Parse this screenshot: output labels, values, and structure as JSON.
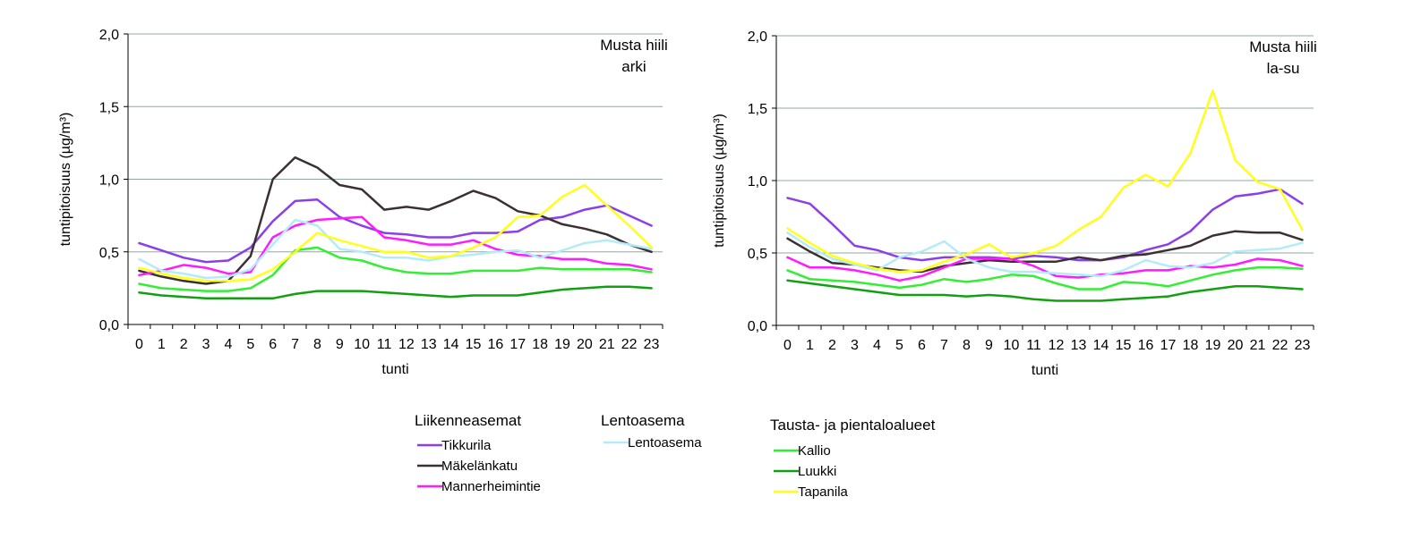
{
  "colors": {
    "Tikkurila": "#8b3fe8",
    "Mäkelänkatu": "#3b3032",
    "Mannerheimintie": "#ff1aff",
    "Lentoasema": "#b3ecf8",
    "Kallio": "#33ee33",
    "Luukki": "#12a012",
    "Tapanila": "#ffff1a",
    "grid": "#8fa8a0",
    "axis": "#000000"
  },
  "chart_data": [
    {
      "type": "line",
      "annotation": [
        "Musta hiili",
        "arki"
      ],
      "xlabel": "tunti",
      "ylabel": "tuntipitoisuus (µg/m³)",
      "ylim": [
        0,
        2
      ],
      "yticks": [
        "0,0",
        "0,5",
        "1,0",
        "1,5",
        "2,0"
      ],
      "x": [
        "0",
        "1",
        "2",
        "3",
        "4",
        "5",
        "6",
        "7",
        "8",
        "9",
        "10",
        "11",
        "12",
        "13",
        "14",
        "15",
        "16",
        "17",
        "18",
        "19",
        "20",
        "21",
        "22",
        "23"
      ],
      "grid": "horizontal",
      "series": [
        {
          "name": "Tikkurila",
          "values": [
            0.56,
            0.51,
            0.46,
            0.43,
            0.44,
            0.53,
            0.71,
            0.85,
            0.86,
            0.74,
            0.68,
            0.63,
            0.62,
            0.6,
            0.6,
            0.63,
            0.63,
            0.64,
            0.72,
            0.74,
            0.79,
            0.82,
            0.75,
            0.68
          ]
        },
        {
          "name": "Mäkelänkatu",
          "values": [
            0.37,
            0.33,
            0.3,
            0.28,
            0.3,
            0.47,
            1.0,
            1.15,
            1.08,
            0.96,
            0.93,
            0.79,
            0.81,
            0.79,
            0.85,
            0.92,
            0.87,
            0.78,
            0.75,
            0.69,
            0.66,
            0.62,
            0.55,
            0.5
          ]
        },
        {
          "name": "Mannerheimintie",
          "values": [
            0.34,
            0.37,
            0.41,
            0.39,
            0.35,
            0.36,
            0.6,
            0.68,
            0.72,
            0.73,
            0.74,
            0.6,
            0.58,
            0.55,
            0.55,
            0.58,
            0.52,
            0.48,
            0.47,
            0.45,
            0.45,
            0.42,
            0.41,
            0.38
          ]
        },
        {
          "name": "Lentoasema",
          "values": [
            0.45,
            0.37,
            0.35,
            0.32,
            0.33,
            0.38,
            0.55,
            0.72,
            0.68,
            0.52,
            0.5,
            0.46,
            0.46,
            0.44,
            0.47,
            0.48,
            0.5,
            0.51,
            0.46,
            0.51,
            0.56,
            0.58,
            0.55,
            0.52
          ]
        },
        {
          "name": "Kallio",
          "values": [
            0.28,
            0.25,
            0.24,
            0.23,
            0.23,
            0.25,
            0.34,
            0.51,
            0.53,
            0.46,
            0.44,
            0.39,
            0.36,
            0.35,
            0.35,
            0.37,
            0.37,
            0.37,
            0.39,
            0.38,
            0.38,
            0.38,
            0.38,
            0.36
          ]
        },
        {
          "name": "Luukki",
          "values": [
            0.22,
            0.2,
            0.19,
            0.18,
            0.18,
            0.18,
            0.18,
            0.21,
            0.23,
            0.23,
            0.23,
            0.22,
            0.21,
            0.2,
            0.19,
            0.2,
            0.2,
            0.2,
            0.22,
            0.24,
            0.25,
            0.26,
            0.26,
            0.25
          ]
        },
        {
          "name": "Tapanila",
          "values": [
            0.39,
            0.35,
            0.32,
            0.3,
            0.3,
            0.31,
            0.38,
            0.5,
            0.63,
            0.58,
            0.54,
            0.5,
            0.5,
            0.46,
            0.47,
            0.53,
            0.6,
            0.74,
            0.75,
            0.88,
            0.96,
            0.82,
            0.68,
            0.53
          ]
        }
      ]
    },
    {
      "type": "line",
      "annotation": [
        "Musta hiili",
        "la-su"
      ],
      "xlabel": "tunti",
      "ylabel": "tuntipitoisuus (µg/m³)",
      "ylim": [
        0,
        2
      ],
      "yticks": [
        "0,0",
        "0,5",
        "1,0",
        "1,5",
        "2,0"
      ],
      "x": [
        "0",
        "1",
        "2",
        "3",
        "4",
        "5",
        "6",
        "7",
        "8",
        "9",
        "10",
        "11",
        "12",
        "13",
        "14",
        "15",
        "16",
        "17",
        "18",
        "19",
        "20",
        "21",
        "22",
        "23"
      ],
      "grid": "horizontal",
      "series": [
        {
          "name": "Tikkurila",
          "values": [
            0.88,
            0.84,
            0.7,
            0.55,
            0.52,
            0.47,
            0.45,
            0.47,
            0.47,
            0.47,
            0.46,
            0.48,
            0.47,
            0.45,
            0.45,
            0.47,
            0.52,
            0.56,
            0.65,
            0.8,
            0.89,
            0.91,
            0.94,
            0.84
          ]
        },
        {
          "name": "Mäkelänkatu",
          "values": [
            0.6,
            0.51,
            0.43,
            0.42,
            0.4,
            0.38,
            0.37,
            0.41,
            0.43,
            0.45,
            0.44,
            0.44,
            0.44,
            0.47,
            0.45,
            0.48,
            0.49,
            0.52,
            0.55,
            0.62,
            0.65,
            0.64,
            0.64,
            0.59
          ]
        },
        {
          "name": "Mannerheimintie",
          "values": [
            0.47,
            0.4,
            0.4,
            0.38,
            0.35,
            0.31,
            0.34,
            0.4,
            0.46,
            0.46,
            0.46,
            0.41,
            0.34,
            0.33,
            0.35,
            0.36,
            0.38,
            0.38,
            0.41,
            0.4,
            0.42,
            0.46,
            0.45,
            0.41
          ]
        },
        {
          "name": "Lentoasema",
          "values": [
            0.64,
            0.54,
            0.46,
            0.42,
            0.38,
            0.47,
            0.51,
            0.58,
            0.46,
            0.4,
            0.37,
            0.37,
            0.36,
            0.35,
            0.34,
            0.38,
            0.45,
            0.41,
            0.4,
            0.43,
            0.51,
            0.52,
            0.53,
            0.57
          ]
        },
        {
          "name": "Kallio",
          "values": [
            0.38,
            0.32,
            0.31,
            0.3,
            0.28,
            0.26,
            0.28,
            0.32,
            0.3,
            0.32,
            0.35,
            0.34,
            0.29,
            0.25,
            0.25,
            0.3,
            0.29,
            0.27,
            0.31,
            0.35,
            0.38,
            0.4,
            0.4,
            0.39
          ]
        },
        {
          "name": "Luukki",
          "values": [
            0.31,
            0.29,
            0.27,
            0.25,
            0.23,
            0.21,
            0.21,
            0.21,
            0.2,
            0.21,
            0.2,
            0.18,
            0.17,
            0.17,
            0.17,
            0.18,
            0.19,
            0.2,
            0.23,
            0.25,
            0.27,
            0.27,
            0.26,
            0.25
          ]
        },
        {
          "name": "Tapanila",
          "values": [
            0.67,
            0.57,
            0.48,
            0.43,
            0.39,
            0.37,
            0.38,
            0.44,
            0.49,
            0.56,
            0.47,
            0.5,
            0.55,
            0.66,
            0.75,
            0.95,
            1.04,
            0.96,
            1.19,
            1.62,
            1.14,
            0.99,
            0.94,
            0.66
          ]
        }
      ]
    }
  ],
  "legend": {
    "groups": [
      {
        "title": "Liikenneasemat",
        "entries": [
          "Tikkurila",
          "Mäkelänkatu",
          "Mannerheimintie"
        ]
      },
      {
        "title": "Lentoasema",
        "entries": [
          "Lentoasema"
        ]
      },
      {
        "title": "Tausta- ja pientaloalueet",
        "entries": [
          "Kallio",
          "Luukki",
          "Tapanila"
        ]
      }
    ]
  }
}
